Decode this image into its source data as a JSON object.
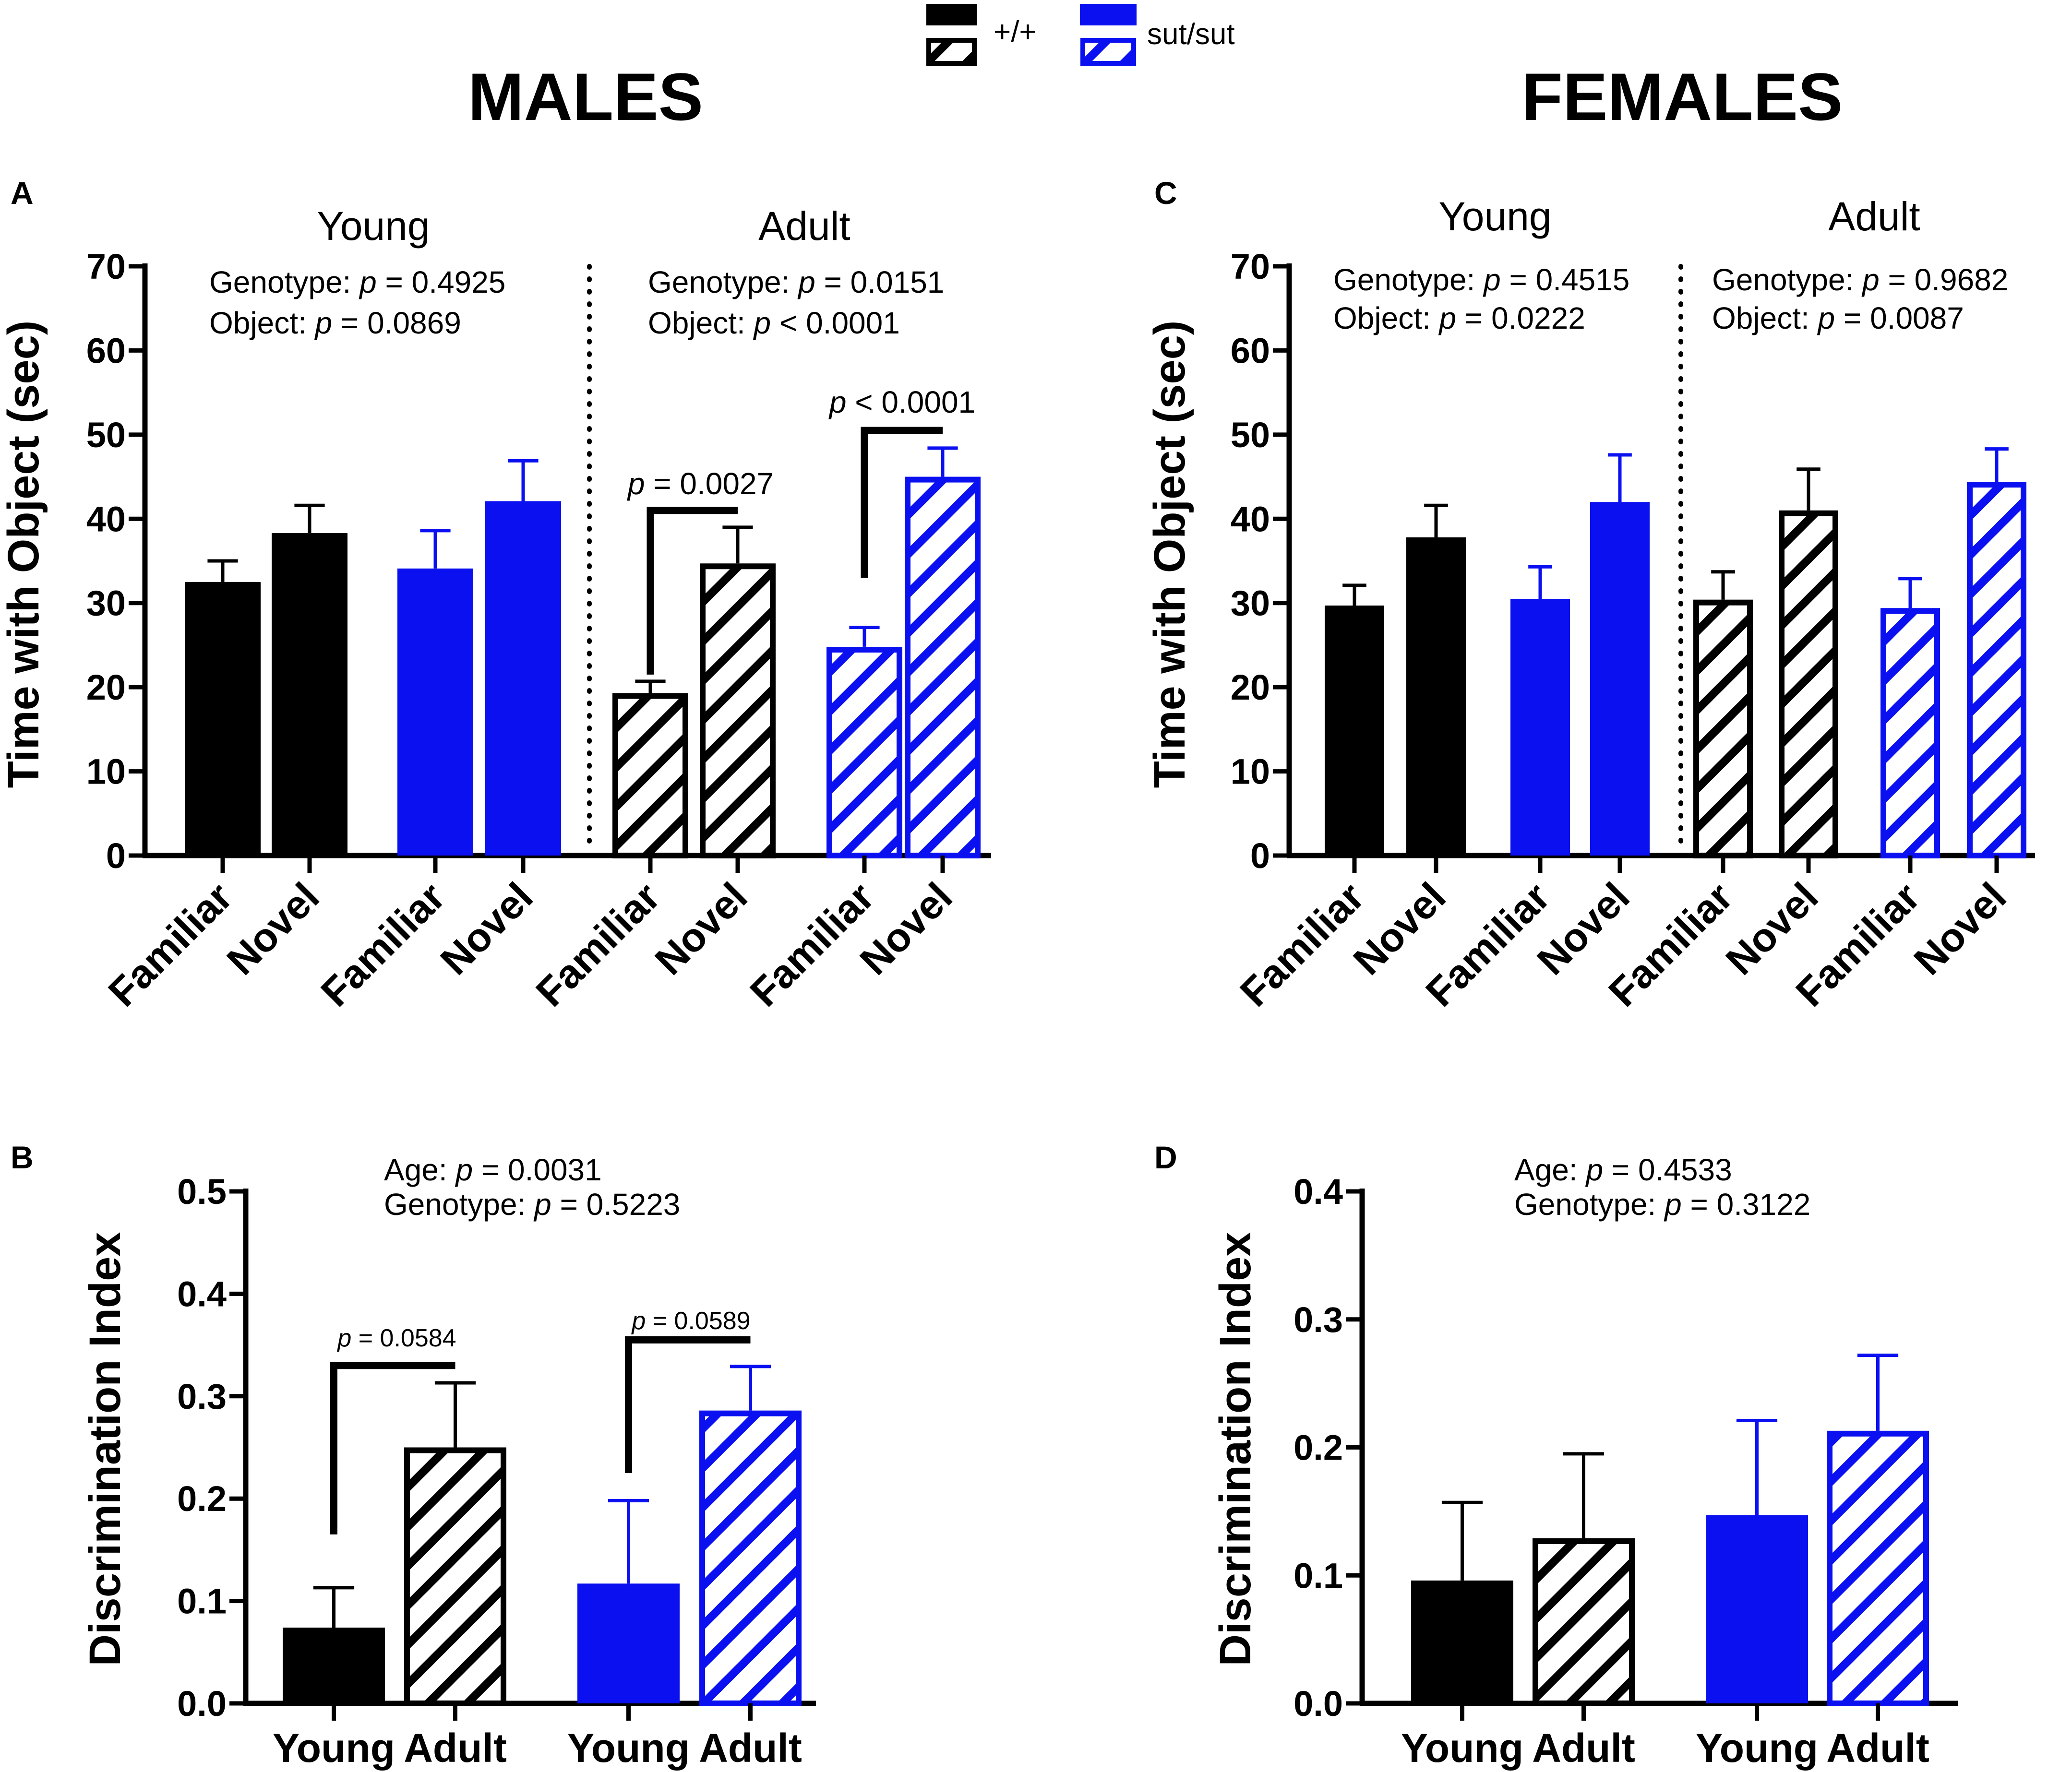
{
  "figure": {
    "header_males": "MALES",
    "header_females": "FEMALES",
    "legend": [
      {
        "label": "+/+",
        "color": "#000000"
      },
      {
        "label": "sut/sut",
        "color": "#0a10f0"
      }
    ]
  },
  "chart_data": [
    {
      "panel": "A",
      "type": "bar",
      "ylabel": "Time with Object (sec)",
      "ylim": [
        0,
        70
      ],
      "yticks": [
        0,
        10,
        20,
        30,
        40,
        50,
        60,
        70
      ],
      "groups": [
        {
          "title": "Young",
          "stats": [
            {
              "prefix": "Genotype: ",
              "p": "p",
              "suffix": " = 0.4925"
            },
            {
              "prefix": "Object: ",
              "p": "p",
              "suffix": " = 0.0869"
            }
          ]
        },
        {
          "title": "Adult",
          "stats": [
            {
              "prefix": "Genotype: ",
              "p": "p",
              "suffix": " = 0.0151"
            },
            {
              "prefix": "Object: ",
              "p": "p",
              "suffix": " < 0.0001"
            }
          ]
        }
      ],
      "bars": [
        {
          "label": "Familiar",
          "value": 32.5,
          "error": 2.5,
          "color": "#000000",
          "pattern": "solid"
        },
        {
          "label": "Novel",
          "value": 38.3,
          "error": 3.3,
          "color": "#000000",
          "pattern": "solid"
        },
        {
          "label": "Familiar",
          "value": 34.1,
          "error": 4.5,
          "color": "#0a10f0",
          "pattern": "solid"
        },
        {
          "label": "Novel",
          "value": 42.1,
          "error": 4.8,
          "color": "#0a10f0",
          "pattern": "solid"
        },
        {
          "label": "Familiar",
          "value": 19.3,
          "error": 1.4,
          "color": "#000000",
          "pattern": "hatch"
        },
        {
          "label": "Novel",
          "value": 34.7,
          "error": 4.3,
          "color": "#000000",
          "pattern": "hatch"
        },
        {
          "label": "Familiar",
          "value": 24.8,
          "error": 2.3,
          "color": "#0a10f0",
          "pattern": "hatch"
        },
        {
          "label": "Novel",
          "value": 45.0,
          "error": 3.4,
          "color": "#0a10f0",
          "pattern": "hatch"
        }
      ],
      "comparisons": [
        {
          "from": 4,
          "to": 5,
          "p": "p",
          "text": " = 0.0027",
          "y_low": 21.5,
          "y_high": 41.0
        },
        {
          "from": 6,
          "to": 7,
          "p": "p",
          "text": " < 0.0001",
          "y_low": 33.0,
          "y_high": 50.5
        }
      ]
    },
    {
      "panel": "C",
      "type": "bar",
      "ylabel": "Time with Object (sec)",
      "ylim": [
        0,
        70
      ],
      "yticks": [
        0,
        10,
        20,
        30,
        40,
        50,
        60,
        70
      ],
      "groups": [
        {
          "title": "Young",
          "stats": [
            {
              "prefix": "Genotype: ",
              "p": "p",
              "suffix": " = 0.4515"
            },
            {
              "prefix": "Object: ",
              "p": "p",
              "suffix": " = 0.0222"
            }
          ]
        },
        {
          "title": "Adult",
          "stats": [
            {
              "prefix": "Genotype: ",
              "p": "p",
              "suffix": " = 0.9682"
            },
            {
              "prefix": "Object: ",
              "p": "p",
              "suffix": " = 0.0087"
            }
          ]
        }
      ],
      "bars": [
        {
          "label": "Familiar",
          "value": 29.7,
          "error": 2.4,
          "color": "#000000",
          "pattern": "solid"
        },
        {
          "label": "Novel",
          "value": 37.8,
          "error": 3.8,
          "color": "#000000",
          "pattern": "solid"
        },
        {
          "label": "Familiar",
          "value": 30.5,
          "error": 3.8,
          "color": "#0a10f0",
          "pattern": "solid"
        },
        {
          "label": "Novel",
          "value": 42.0,
          "error": 5.6,
          "color": "#0a10f0",
          "pattern": "solid"
        },
        {
          "label": "Familiar",
          "value": 30.4,
          "error": 3.3,
          "color": "#000000",
          "pattern": "hatch"
        },
        {
          "label": "Novel",
          "value": 41.0,
          "error": 4.9,
          "color": "#000000",
          "pattern": "hatch"
        },
        {
          "label": "Familiar",
          "value": 29.4,
          "error": 3.5,
          "color": "#0a10f0",
          "pattern": "hatch"
        },
        {
          "label": "Novel",
          "value": 44.4,
          "error": 3.9,
          "color": "#0a10f0",
          "pattern": "hatch"
        }
      ],
      "comparisons": []
    },
    {
      "panel": "B",
      "type": "bar",
      "ylabel": "Discrimination Index",
      "ylim": [
        0,
        0.5
      ],
      "yticks": [
        0.0,
        0.1,
        0.2,
        0.3,
        0.4,
        0.5
      ],
      "stats": [
        {
          "prefix": "Age: ",
          "p": "p",
          "suffix": " = 0.0031"
        },
        {
          "prefix": "Genotype: ",
          "p": "p",
          "suffix": " = 0.5223"
        }
      ],
      "bars": [
        {
          "label": "Young",
          "value": 0.074,
          "error": 0.039,
          "color": "#000000",
          "pattern": "solid"
        },
        {
          "label": "Adult",
          "value": 0.25,
          "error": 0.063,
          "color": "#000000",
          "pattern": "hatch"
        },
        {
          "label": "Young",
          "value": 0.117,
          "error": 0.081,
          "color": "#0a10f0",
          "pattern": "solid"
        },
        {
          "label": "Adult",
          "value": 0.286,
          "error": 0.043,
          "color": "#0a10f0",
          "pattern": "hatch"
        }
      ],
      "comparisons": [
        {
          "from": 0,
          "to": 1,
          "p": "p",
          "text": " = 0.0584",
          "y_low": 0.165,
          "y_high": 0.33
        },
        {
          "from": 2,
          "to": 3,
          "p": "p",
          "text": " = 0.0589",
          "y_low": 0.225,
          "y_high": 0.355
        }
      ]
    },
    {
      "panel": "D",
      "type": "bar",
      "ylabel": "Discrimination Index",
      "ylim": [
        0,
        0.4
      ],
      "yticks": [
        0.0,
        0.1,
        0.2,
        0.3,
        0.4
      ],
      "stats": [
        {
          "prefix": "Age: ",
          "p": "p",
          "suffix": " = 0.4533"
        },
        {
          "prefix": "Genotype: ",
          "p": "p",
          "suffix": " = 0.3122"
        }
      ],
      "bars": [
        {
          "label": "Young",
          "value": 0.096,
          "error": 0.061,
          "color": "#000000",
          "pattern": "solid"
        },
        {
          "label": "Adult",
          "value": 0.129,
          "error": 0.066,
          "color": "#000000",
          "pattern": "hatch"
        },
        {
          "label": "Young",
          "value": 0.147,
          "error": 0.074,
          "color": "#0a10f0",
          "pattern": "solid"
        },
        {
          "label": "Adult",
          "value": 0.213,
          "error": 0.059,
          "color": "#0a10f0",
          "pattern": "hatch"
        }
      ],
      "comparisons": []
    }
  ]
}
